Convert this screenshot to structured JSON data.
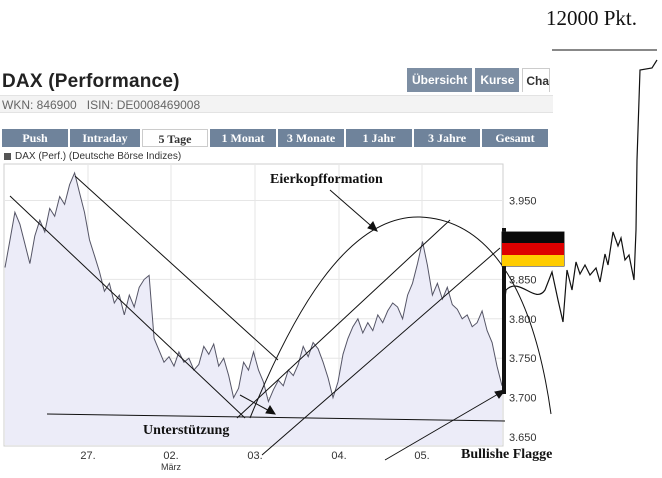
{
  "header": {
    "title": "DAX (Performance)",
    "wkn": "WKN: 846900",
    "isin": "ISIN: DE0008469008"
  },
  "top_tabs": [
    {
      "label": "Übersicht",
      "active": false
    },
    {
      "label": "Kurse",
      "active": false
    },
    {
      "label": "Charts",
      "active": true
    }
  ],
  "period_tabs": [
    {
      "label": "Push",
      "active": false
    },
    {
      "label": "Intraday",
      "active": false
    },
    {
      "label": "5 Tage",
      "active": true
    },
    {
      "label": "1 Monat",
      "active": false
    },
    {
      "label": "3 Monate",
      "active": false
    },
    {
      "label": "1 Jahr",
      "active": false
    },
    {
      "label": "3 Jahre",
      "active": false
    },
    {
      "label": "Gesamt",
      "active": false
    }
  ],
  "legend": {
    "label": "DAX (Perf.) (Deutsche Börse Indizes)"
  },
  "annotations": {
    "price_target": "12000 Pkt.",
    "pattern": "Eierkopfformation",
    "support": "Unterstützung",
    "flag": "Bullishe Flagge"
  },
  "chart_data": {
    "type": "area",
    "y_ticks": [
      3650,
      3700,
      3750,
      3800,
      3850,
      3950
    ],
    "y_tick_labels": [
      "3.650",
      "3.700",
      "3.750",
      "3.800",
      "3.850",
      "3.950"
    ],
    "ylim": [
      3640,
      3995
    ],
    "x_ticks": [
      "27.",
      "02.",
      "03.",
      "04.",
      "05."
    ],
    "x_sublabel": "März",
    "series": [
      {
        "x": [
          0,
          0.2,
          0.4,
          0.6,
          0.8,
          1.0,
          1.2,
          1.4,
          1.6,
          1.8,
          2.0,
          2.2,
          2.4,
          2.6,
          2.8,
          3.0,
          3.2,
          3.4,
          3.6,
          3.8,
          4.0,
          4.2,
          4.4,
          4.6,
          4.8,
          5.0,
          5.2,
          5.4,
          5.6,
          5.8,
          6.0,
          6.2,
          6.4,
          6.6,
          6.8,
          7.0,
          7.2,
          7.4,
          7.6,
          7.8,
          8.0,
          8.2,
          8.4,
          8.6,
          8.8,
          9.0,
          9.2,
          9.4,
          9.6,
          9.8,
          10.0,
          10.2,
          10.4,
          10.6,
          10.8,
          11.0,
          11.2,
          11.4,
          11.6,
          11.8,
          12.0,
          12.2,
          12.4,
          12.6,
          12.8,
          13.0,
          13.2,
          13.4,
          13.6,
          13.8,
          14.0,
          14.2,
          14.4,
          14.6,
          14.8,
          15.0,
          15.2,
          15.4,
          15.6,
          15.8,
          16.0,
          16.2,
          16.4,
          16.6,
          16.8,
          17.0,
          17.2,
          17.4,
          17.6,
          17.8,
          18.0,
          18.2,
          18.4,
          18.6,
          18.8,
          19.0,
          19.2,
          19.4,
          19.6,
          19.8,
          20.0
        ],
        "values": [
          3865,
          3900,
          3935,
          3920,
          3895,
          3870,
          3905,
          3925,
          3910,
          3940,
          3930,
          3955,
          3945,
          3970,
          3985,
          3960,
          3935,
          3900,
          3880,
          3860,
          3835,
          3845,
          3820,
          3830,
          3805,
          3830,
          3815,
          3840,
          3850,
          3855,
          3775,
          3760,
          3745,
          3752,
          3740,
          3758,
          3745,
          3750,
          3735,
          3742,
          3765,
          3755,
          3768,
          3740,
          3750,
          3728,
          3700,
          3712,
          3745,
          3735,
          3758,
          3735,
          3720,
          3695,
          3710,
          3722,
          3715,
          3735,
          3728,
          3742,
          3765,
          3752,
          3770,
          3762,
          3745,
          3725,
          3700,
          3720,
          3755,
          3775,
          3790,
          3800,
          3782,
          3795,
          3785,
          3805,
          3795,
          3810,
          3820,
          3815,
          3800,
          3830,
          3845,
          3870,
          3898,
          3868,
          3830,
          3845,
          3825,
          3840,
          3818,
          3812,
          3800,
          3805,
          3790,
          3795,
          3810,
          3785,
          3770,
          3740,
          3715
        ]
      }
    ],
    "grid": true,
    "overlays": [
      "descending channel",
      "ascending channel",
      "support line",
      "arc"
    ]
  }
}
